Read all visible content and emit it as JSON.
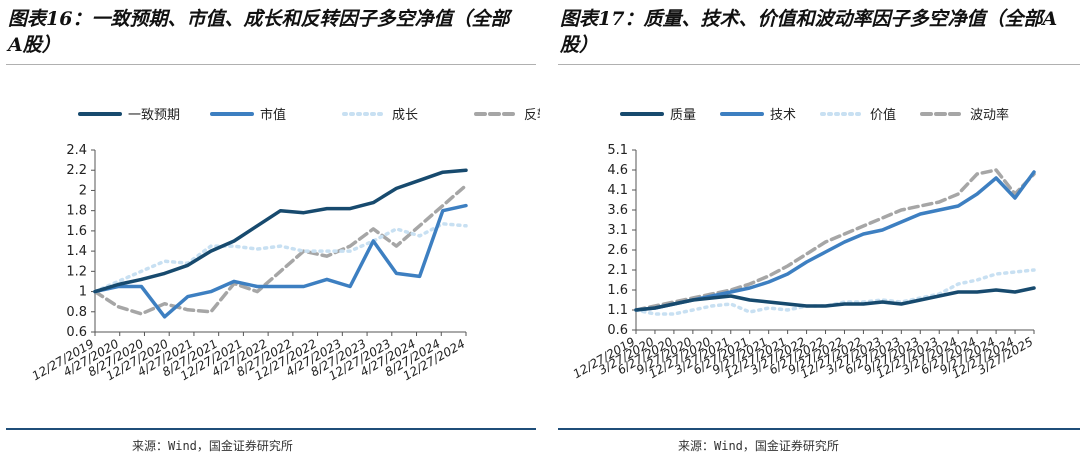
{
  "panels": [
    {
      "title": "图表16：一致预期、市值、成长和反转因子多空净值（全部A股）",
      "source": "来源：Wind，国金证券研究所"
    },
    {
      "title": "图表17：质量、技术、价值和波动率因子多空净值（全部A股）",
      "source": "来源：Wind，国金证券研究所"
    }
  ],
  "chart_data": [
    {
      "type": "line",
      "title": "",
      "xlabel": "",
      "ylabel": "",
      "ylim": [
        0.6,
        2.4
      ],
      "yticks": [
        "0.6",
        "0.8",
        "1",
        "1.2",
        "1.4",
        "1.6",
        "1.8",
        "2",
        "2.2",
        "2.4"
      ],
      "xticks": [
        "12/27/2019",
        "4/27/2020",
        "8/27/2020",
        "12/27/2020",
        "4/27/2021",
        "8/27/2021",
        "12/27/2021",
        "4/27/2022",
        "8/27/2022",
        "12/27/2022",
        "4/27/2023",
        "8/27/2023",
        "12/27/2023",
        "4/27/2024",
        "8/27/2024",
        "12/27/2024"
      ],
      "grid": false,
      "legend_position": "top",
      "x": [
        0,
        1,
        2,
        3,
        4,
        5,
        6,
        7,
        8,
        9,
        10,
        11,
        12,
        13,
        14,
        15,
        16
      ],
      "series": [
        {
          "name": "一致预期",
          "color": "#174a6e",
          "dash": "solid",
          "values": [
            1.0,
            1.07,
            1.12,
            1.18,
            1.26,
            1.4,
            1.5,
            1.65,
            1.8,
            1.78,
            1.82,
            1.82,
            1.88,
            2.02,
            2.1,
            2.18,
            2.2
          ]
        },
        {
          "name": "市值",
          "color": "#3d7fc1",
          "dash": "solid",
          "values": [
            1.0,
            1.05,
            1.05,
            0.75,
            0.95,
            1.0,
            1.1,
            1.05,
            1.05,
            1.05,
            1.12,
            1.05,
            1.5,
            1.18,
            1.15,
            1.8,
            1.85
          ]
        },
        {
          "name": "成长",
          "color": "#c8e0f2",
          "dash": "dotted",
          "values": [
            1.0,
            1.1,
            1.2,
            1.3,
            1.28,
            1.45,
            1.45,
            1.42,
            1.45,
            1.4,
            1.4,
            1.4,
            1.5,
            1.62,
            1.55,
            1.67,
            1.65
          ]
        },
        {
          "name": "反转",
          "color": "#a6a6a6",
          "dash": "dashed",
          "values": [
            1.0,
            0.85,
            0.78,
            0.88,
            0.82,
            0.8,
            1.08,
            1.0,
            1.2,
            1.4,
            1.35,
            1.45,
            1.62,
            1.45,
            1.65,
            1.85,
            2.05
          ]
        }
      ]
    },
    {
      "type": "line",
      "title": "",
      "xlabel": "",
      "ylabel": "",
      "ylim": [
        0.6,
        5.1
      ],
      "yticks": [
        "0.6",
        "1.1",
        "1.6",
        "2.1",
        "2.6",
        "3.1",
        "3.6",
        "4.1",
        "4.6",
        "5.1"
      ],
      "xticks": [
        "12/27/2019",
        "3/27/2020",
        "6/27/2020",
        "9/27/2020",
        "12/27/2020",
        "3/27/2021",
        "6/27/2021",
        "9/27/2021",
        "12/27/2021",
        "3/27/2022",
        "6/27/2022",
        "9/27/2022",
        "12/27/2022",
        "3/27/2023",
        "6/27/2023",
        "9/27/2023",
        "12/27/2023",
        "3/27/2024",
        "6/27/2024",
        "9/27/2024",
        "12/27/2024",
        "3/27/2025"
      ],
      "grid": false,
      "legend_position": "top",
      "x": [
        0,
        1,
        2,
        3,
        4,
        5,
        6,
        7,
        8,
        9,
        10,
        11,
        12,
        13,
        14,
        15,
        16,
        17,
        18,
        19,
        20,
        21
      ],
      "series": [
        {
          "name": "质量",
          "color": "#174a6e",
          "dash": "solid",
          "values": [
            1.1,
            1.15,
            1.25,
            1.35,
            1.4,
            1.45,
            1.35,
            1.3,
            1.25,
            1.2,
            1.2,
            1.25,
            1.25,
            1.3,
            1.25,
            1.35,
            1.45,
            1.55,
            1.55,
            1.6,
            1.55,
            1.65
          ]
        },
        {
          "name": "技术",
          "color": "#3d7fc1",
          "dash": "solid",
          "values": [
            1.1,
            1.15,
            1.25,
            1.35,
            1.45,
            1.55,
            1.65,
            1.8,
            2.0,
            2.3,
            2.55,
            2.8,
            3.0,
            3.1,
            3.3,
            3.5,
            3.6,
            3.7,
            4.0,
            4.4,
            3.9,
            4.55
          ]
        },
        {
          "name": "价值",
          "color": "#c8e0f2",
          "dash": "dotted",
          "values": [
            1.1,
            1.0,
            1.0,
            1.1,
            1.2,
            1.25,
            1.05,
            1.15,
            1.1,
            1.2,
            1.2,
            1.3,
            1.3,
            1.35,
            1.3,
            1.4,
            1.5,
            1.75,
            1.85,
            2.0,
            2.05,
            2.1
          ]
        },
        {
          "name": "波动率",
          "color": "#a6a6a6",
          "dash": "dashed",
          "values": [
            1.1,
            1.2,
            1.3,
            1.4,
            1.5,
            1.6,
            1.75,
            1.95,
            2.2,
            2.5,
            2.8,
            3.0,
            3.2,
            3.4,
            3.6,
            3.7,
            3.8,
            4.0,
            4.5,
            4.6,
            4.0,
            4.5
          ]
        }
      ]
    }
  ]
}
